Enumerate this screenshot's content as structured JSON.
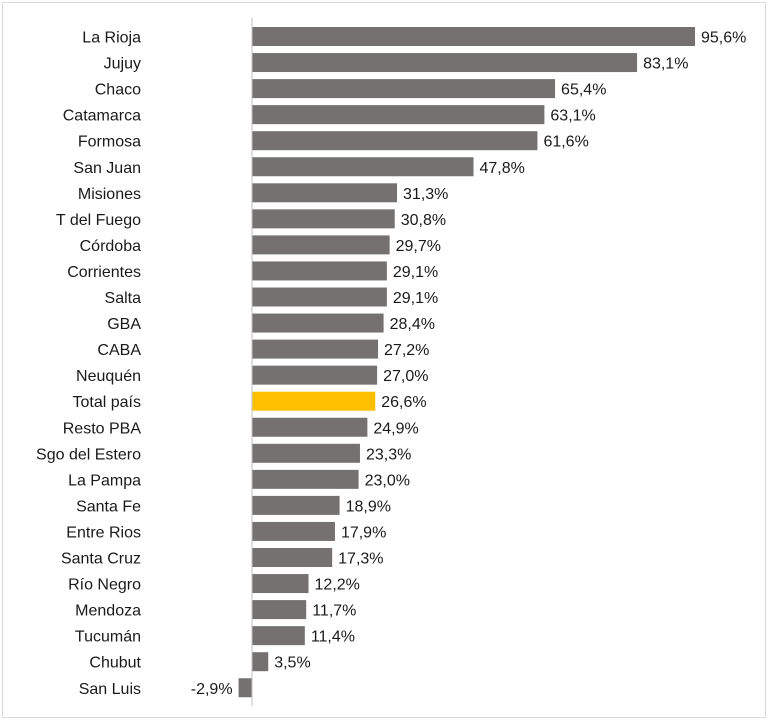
{
  "chart_data": {
    "type": "bar",
    "orientation": "horizontal",
    "title": "",
    "xlabel": "",
    "ylabel": "",
    "xlim": [
      -3,
      96
    ],
    "grid": false,
    "legend": "none",
    "categories": [
      "La Rioja",
      "Jujuy",
      "Chaco",
      "Catamarca",
      "Formosa",
      "San Juan",
      "Misiones",
      "T del Fuego",
      "Córdoba",
      "Corrientes",
      "Salta",
      "GBA",
      "CABA",
      "Neuquén",
      "Total país",
      "Resto PBA",
      "Sgo del Estero",
      "La Pampa",
      "Santa Fe",
      "Entre Rios",
      "Santa Cruz",
      "Río Negro",
      "Mendoza",
      "Tucumán",
      "Chubut",
      "San Luis"
    ],
    "values": [
      95.6,
      83.1,
      65.4,
      63.1,
      61.6,
      47.8,
      31.3,
      30.8,
      29.7,
      29.1,
      29.1,
      28.4,
      27.2,
      27.0,
      26.6,
      24.9,
      23.3,
      23.0,
      18.9,
      17.9,
      17.3,
      12.2,
      11.7,
      11.4,
      3.5,
      -2.9
    ],
    "value_labels": [
      "95,6%",
      "83,1%",
      "65,4%",
      "63,1%",
      "61,6%",
      "47,8%",
      "31,3%",
      "30,8%",
      "29,7%",
      "29,1%",
      "29,1%",
      "28,4%",
      "27,2%",
      "27,0%",
      "26,6%",
      "24,9%",
      "23,3%",
      "23,0%",
      "18,9%",
      "17,9%",
      "17,3%",
      "12,2%",
      "11,7%",
      "11,4%",
      "3,5%",
      "-2,9%"
    ],
    "highlight_category": "Total país",
    "colors": {
      "bar": "#767171",
      "highlight": "#ffc000",
      "axis": "#bfbfbf"
    }
  }
}
